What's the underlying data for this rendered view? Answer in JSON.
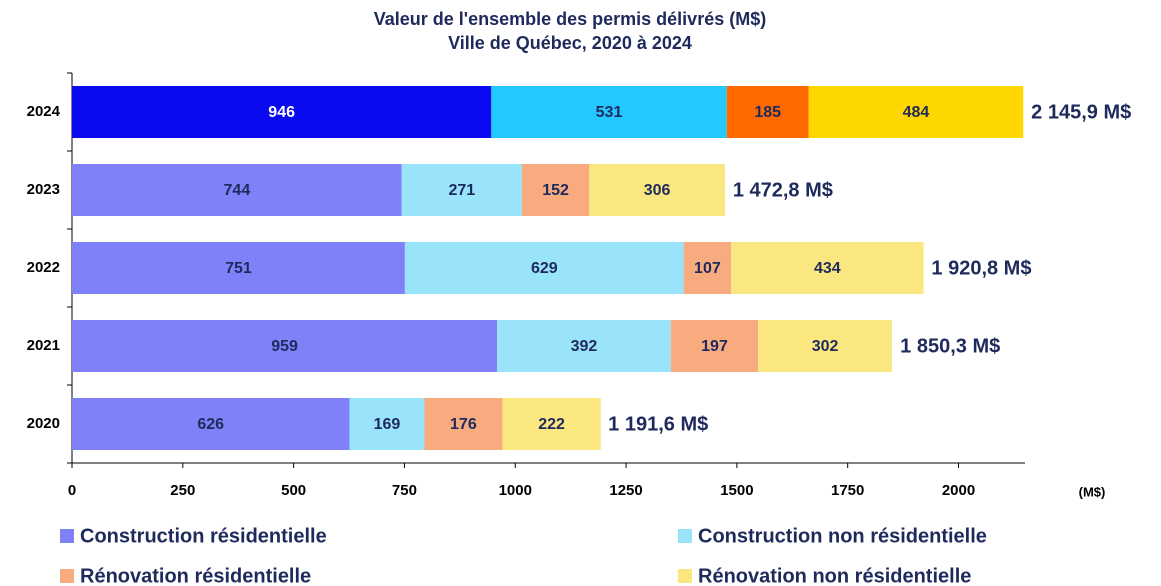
{
  "chart_data": {
    "type": "stacked_barh",
    "title": "Valeur de l'ensemble des permis délivrés (M$)",
    "subtitle": "Ville de Québec, 2020 à 2024",
    "categories": [
      "2024",
      "2023",
      "2022",
      "2021",
      "2020"
    ],
    "highlight_category": "2024",
    "series": [
      {
        "name": "Construction résidentielle",
        "color": "#8080f8",
        "highlight_color": "#0a0af0",
        "values": [
          946,
          744,
          751,
          959,
          626
        ]
      },
      {
        "name": "Construction non résidentielle",
        "color": "#99e3fb",
        "highlight_color": "#22c8ff",
        "values": [
          531,
          271,
          629,
          392,
          169
        ]
      },
      {
        "name": "Rénovation résidentielle",
        "color": "#f9ab80",
        "highlight_color": "#ff6a00",
        "values": [
          185,
          152,
          107,
          197,
          176
        ]
      },
      {
        "name": "Rénovation non résidentielle",
        "color": "#fbe77f",
        "highlight_color": "#ffd700",
        "values": [
          484,
          306,
          434,
          302,
          222
        ]
      }
    ],
    "totals": {
      "values": [
        2145.9,
        1472.8,
        1920.8,
        1850.3,
        1191.6
      ],
      "value_labels": [
        "2 145,9 M$",
        "1 472,8 M$",
        "1 920,8 M$",
        "1 850,3 M$",
        "1 191,6 M$"
      ]
    },
    "xlim": [
      0,
      2150
    ],
    "xticks": [
      0,
      250,
      500,
      750,
      1000,
      1250,
      1500,
      1750,
      2000
    ],
    "xlabel": "(M$)"
  }
}
